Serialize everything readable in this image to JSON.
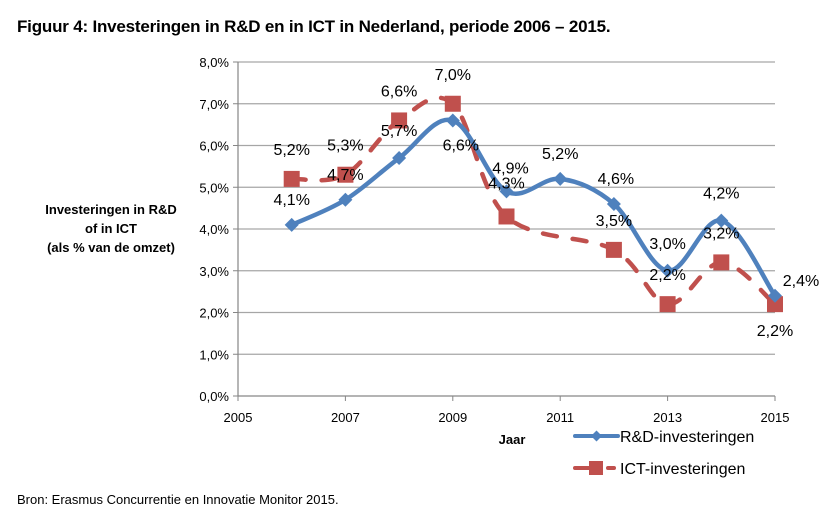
{
  "figure": {
    "title": "Figuur 4: Investeringen in R&D en in ICT in Nederland, periode 2006 – 2015.",
    "source": "Bron: Erasmus Concurrentie en Innovatie Monitor 2015."
  },
  "chart_data": {
    "type": "line",
    "title": "Figuur 4: Investeringen in R&D en in ICT in Nederland, periode 2006 – 2015.",
    "xlabel": "Jaar",
    "ylabel_lines": [
      "Investeringen in R&D",
      "of in ICT",
      "(als % van de omzet)"
    ],
    "xlim": [
      2005,
      2015
    ],
    "ylim": [
      0,
      8
    ],
    "x_ticks": [
      2005,
      2007,
      2009,
      2011,
      2013,
      2015
    ],
    "x_tick_labels": [
      "2005",
      "2007",
      "2009",
      "2011",
      "2013",
      "2015"
    ],
    "y_ticks": [
      0,
      1,
      2,
      3,
      4,
      5,
      6,
      7,
      8
    ],
    "y_tick_labels": [
      "0,0%",
      "1,0%",
      "2,0%",
      "3,0%",
      "4,0%",
      "5,0%",
      "6,0%",
      "7,0%",
      "8,0%"
    ],
    "grid": "horizontal",
    "legend_position": "bottom-right",
    "x": [
      2006,
      2007,
      2008,
      2009,
      2010,
      2011,
      2012,
      2013,
      2014,
      2015
    ],
    "series": [
      {
        "name": "R&D-investeringen",
        "color": "#4F81BD",
        "marker": "diamond",
        "line_style": "solid-smooth",
        "values": [
          4.1,
          4.7,
          5.7,
          6.6,
          4.9,
          5.2,
          4.6,
          3.0,
          4.2,
          2.4
        ],
        "labels": [
          "4,1%",
          "4,7%",
          "5,7%",
          "6,6%",
          "4,9%",
          "5,2%",
          "4,6%",
          "3,0%",
          "4,2%",
          "2,4%"
        ]
      },
      {
        "name": "ICT-investeringen",
        "color": "#C0504D",
        "marker": "square",
        "line_style": "dashed-smooth",
        "values": [
          5.2,
          5.3,
          6.6,
          7.0,
          4.3,
          null,
          3.5,
          2.2,
          3.2,
          2.2
        ],
        "labels": [
          "5,2%",
          "5,3%",
          "6,6%",
          "7,0%",
          "4,3%",
          "",
          "3,5%",
          "2,2%",
          "3,2%",
          "2,2%"
        ]
      }
    ]
  }
}
